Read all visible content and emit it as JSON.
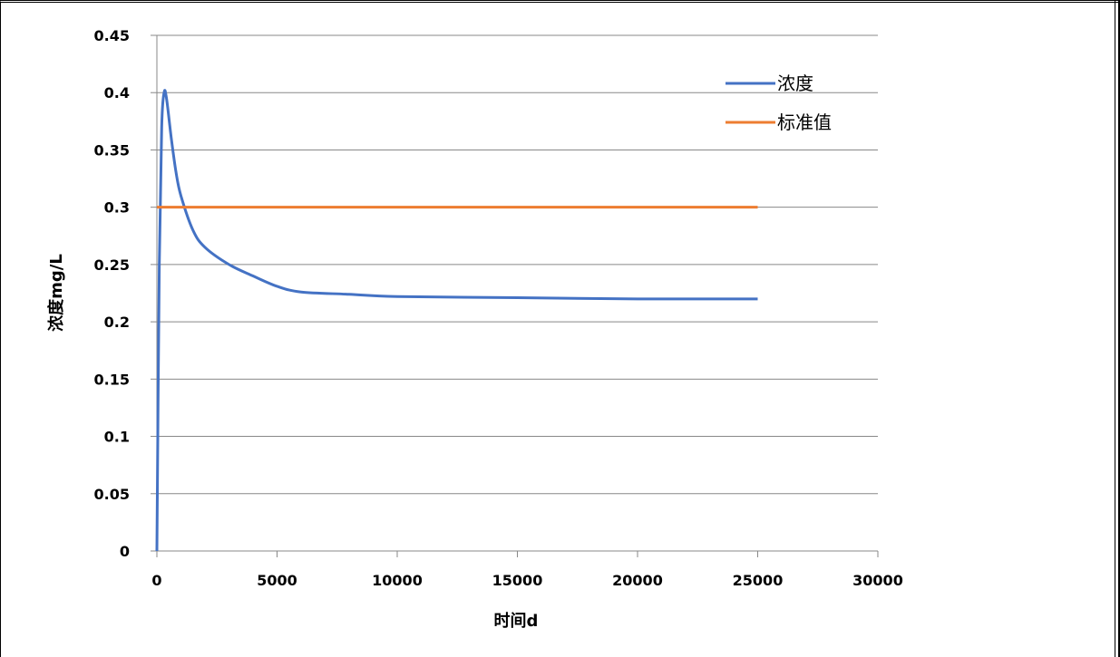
{
  "chart_data": {
    "type": "line",
    "title": "",
    "xlabel": "时间d",
    "ylabel": "浓度mg/L",
    "xlim": [
      0,
      30000
    ],
    "ylim": [
      0,
      0.45
    ],
    "xticks": [
      "0",
      "5000",
      "10000",
      "15000",
      "20000",
      "25000",
      "30000"
    ],
    "yticks": [
      "0",
      "0.05",
      "0.1",
      "0.15",
      "0.2",
      "0.25",
      "0.3",
      "0.35",
      "0.4",
      "0.45"
    ],
    "grid": "horizontal",
    "legend_position": "top-right",
    "series": [
      {
        "name": "浓度",
        "color": "#4472C4",
        "x": [
          0,
          100,
          200,
          300,
          400,
          600,
          800,
          1000,
          1500,
          2000,
          3000,
          4000,
          5000,
          6000,
          8000,
          10000,
          15000,
          20000,
          25000
        ],
        "y": [
          0,
          0.25,
          0.37,
          0.4,
          0.395,
          0.36,
          0.33,
          0.31,
          0.28,
          0.265,
          0.25,
          0.24,
          0.231,
          0.226,
          0.224,
          0.222,
          0.221,
          0.22,
          0.22
        ]
      },
      {
        "name": "标准值",
        "color": "#ED7D31",
        "x": [
          0,
          25000
        ],
        "y": [
          0.3,
          0.3
        ]
      }
    ]
  }
}
